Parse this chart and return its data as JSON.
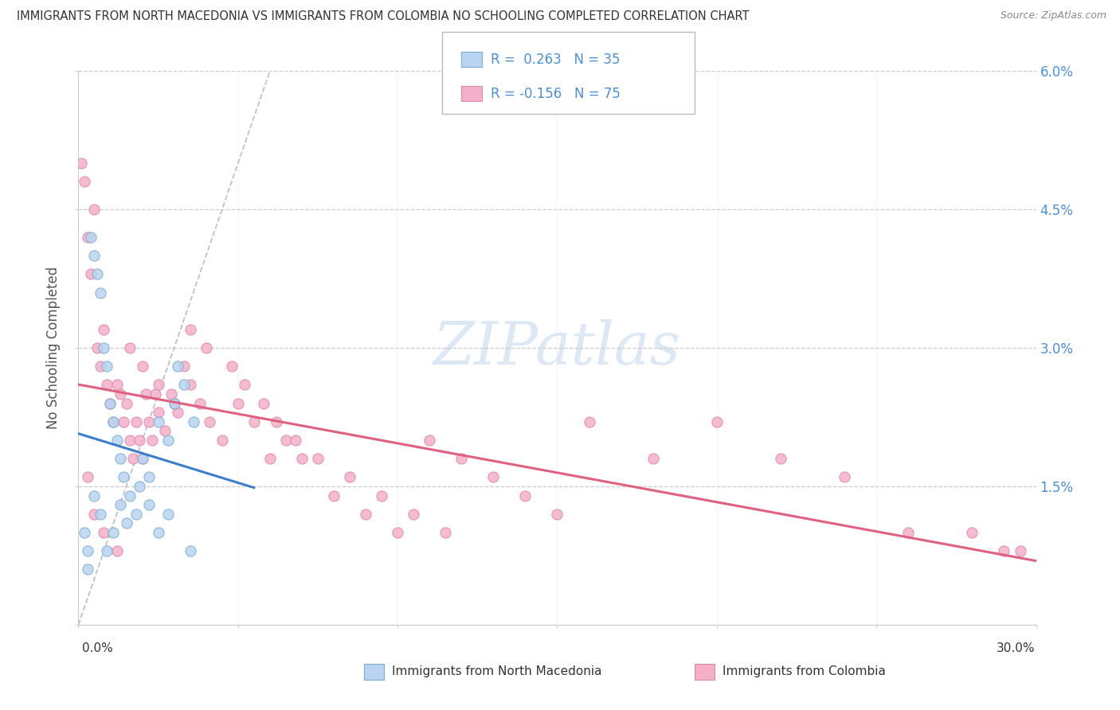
{
  "title": "IMMIGRANTS FROM NORTH MACEDONIA VS IMMIGRANTS FROM COLOMBIA NO SCHOOLING COMPLETED CORRELATION CHART",
  "source": "Source: ZipAtlas.com",
  "ylabel_label": "No Schooling Completed",
  "legend_blue": "Immigrants from North Macedonia",
  "legend_pink": "Immigrants from Colombia",
  "xlim": [
    0.0,
    0.3
  ],
  "ylim": [
    0.0,
    0.06
  ],
  "R_blue": 0.263,
  "N_blue": 35,
  "R_pink": -0.156,
  "N_pink": 75,
  "blue_fill": "#b8d4f0",
  "blue_edge": "#7aadd4",
  "pink_fill": "#f4b0c8",
  "pink_edge": "#e088a8",
  "blue_line": "#3a7fcc",
  "pink_line": "#e06080",
  "text_color": "#4a90d9",
  "title_color": "#333333",
  "source_color": "#888888",
  "watermark": "ZIPatlas",
  "watermark_color": "#dce8f5",
  "ytick_vals": [
    0.0,
    0.015,
    0.03,
    0.045,
    0.06
  ],
  "ytick_labels": [
    "",
    "1.5%",
    "3.0%",
    "4.5%",
    "6.0%"
  ],
  "xtick_vals": [
    0.0,
    0.05,
    0.1,
    0.15,
    0.2,
    0.25,
    0.3
  ],
  "blue_x": [
    0.002,
    0.003,
    0.004,
    0.005,
    0.006,
    0.007,
    0.008,
    0.009,
    0.01,
    0.011,
    0.012,
    0.013,
    0.014,
    0.016,
    0.018,
    0.02,
    0.022,
    0.025,
    0.028,
    0.03,
    0.033,
    0.036,
    0.003,
    0.005,
    0.007,
    0.009,
    0.011,
    0.013,
    0.015,
    0.019,
    0.022,
    0.025,
    0.028,
    0.031,
    0.035
  ],
  "blue_y": [
    0.01,
    0.008,
    0.042,
    0.04,
    0.038,
    0.036,
    0.03,
    0.028,
    0.024,
    0.022,
    0.02,
    0.018,
    0.016,
    0.014,
    0.012,
    0.018,
    0.016,
    0.022,
    0.02,
    0.024,
    0.026,
    0.022,
    0.006,
    0.014,
    0.012,
    0.008,
    0.01,
    0.013,
    0.011,
    0.015,
    0.013,
    0.01,
    0.012,
    0.028,
    0.008
  ],
  "pink_x": [
    0.001,
    0.002,
    0.003,
    0.004,
    0.005,
    0.006,
    0.007,
    0.008,
    0.009,
    0.01,
    0.011,
    0.012,
    0.013,
    0.014,
    0.015,
    0.016,
    0.017,
    0.018,
    0.019,
    0.02,
    0.021,
    0.022,
    0.023,
    0.024,
    0.025,
    0.027,
    0.029,
    0.031,
    0.033,
    0.035,
    0.038,
    0.041,
    0.045,
    0.05,
    0.055,
    0.06,
    0.065,
    0.07,
    0.08,
    0.09,
    0.1,
    0.11,
    0.12,
    0.13,
    0.14,
    0.15,
    0.16,
    0.18,
    0.2,
    0.22,
    0.24,
    0.26,
    0.28,
    0.29,
    0.003,
    0.005,
    0.008,
    0.012,
    0.016,
    0.02,
    0.025,
    0.03,
    0.035,
    0.04,
    0.048,
    0.052,
    0.058,
    0.062,
    0.068,
    0.075,
    0.085,
    0.095,
    0.105,
    0.115,
    0.295
  ],
  "pink_y": [
    0.05,
    0.048,
    0.042,
    0.038,
    0.045,
    0.03,
    0.028,
    0.032,
    0.026,
    0.024,
    0.022,
    0.026,
    0.025,
    0.022,
    0.024,
    0.02,
    0.018,
    0.022,
    0.02,
    0.018,
    0.025,
    0.022,
    0.02,
    0.025,
    0.023,
    0.021,
    0.025,
    0.023,
    0.028,
    0.026,
    0.024,
    0.022,
    0.02,
    0.024,
    0.022,
    0.018,
    0.02,
    0.018,
    0.014,
    0.012,
    0.01,
    0.02,
    0.018,
    0.016,
    0.014,
    0.012,
    0.022,
    0.018,
    0.022,
    0.018,
    0.016,
    0.01,
    0.01,
    0.008,
    0.016,
    0.012,
    0.01,
    0.008,
    0.03,
    0.028,
    0.026,
    0.024,
    0.032,
    0.03,
    0.028,
    0.026,
    0.024,
    0.022,
    0.02,
    0.018,
    0.016,
    0.014,
    0.012,
    0.01,
    0.008
  ]
}
